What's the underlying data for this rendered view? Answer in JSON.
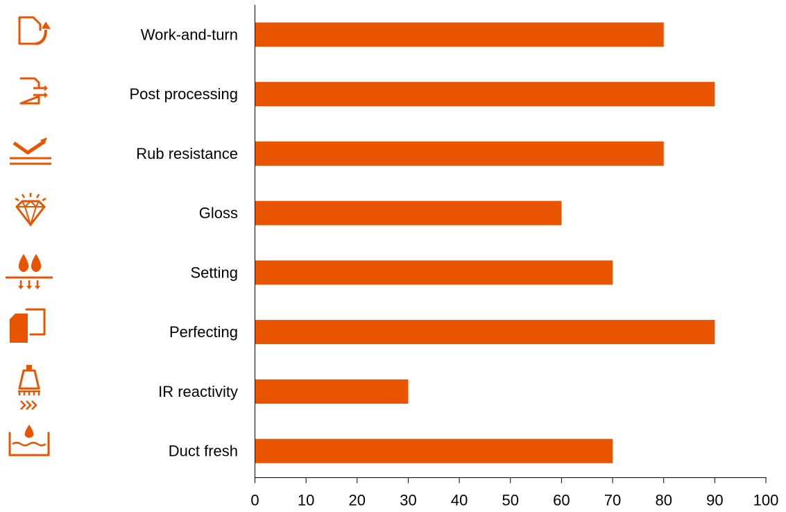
{
  "chart_data": {
    "type": "bar",
    "orientation": "horizontal",
    "title": "",
    "xlabel": "",
    "ylabel": "",
    "categories": [
      "Work-and-turn",
      "Post processing",
      "Rub resistance",
      "Gloss",
      "Setting",
      "Perfecting",
      "IR reactivity",
      "Duct fresh"
    ],
    "values": [
      80,
      90,
      80,
      60,
      70,
      90,
      30,
      70
    ],
    "xlim": [
      0,
      100
    ],
    "xticks": [
      0,
      10,
      20,
      30,
      40,
      50,
      60,
      70,
      80,
      90,
      100
    ],
    "grid": false,
    "legend": "none",
    "bar_color": "#E85400",
    "icon_color": "#E85400",
    "category_icons": [
      "work-and-turn-icon",
      "post-processing-icon",
      "rub-resistance-icon",
      "gloss-diamond-icon",
      "setting-drops-icon",
      "perfecting-icon",
      "ir-lamp-icon",
      "duct-fresh-icon"
    ]
  }
}
